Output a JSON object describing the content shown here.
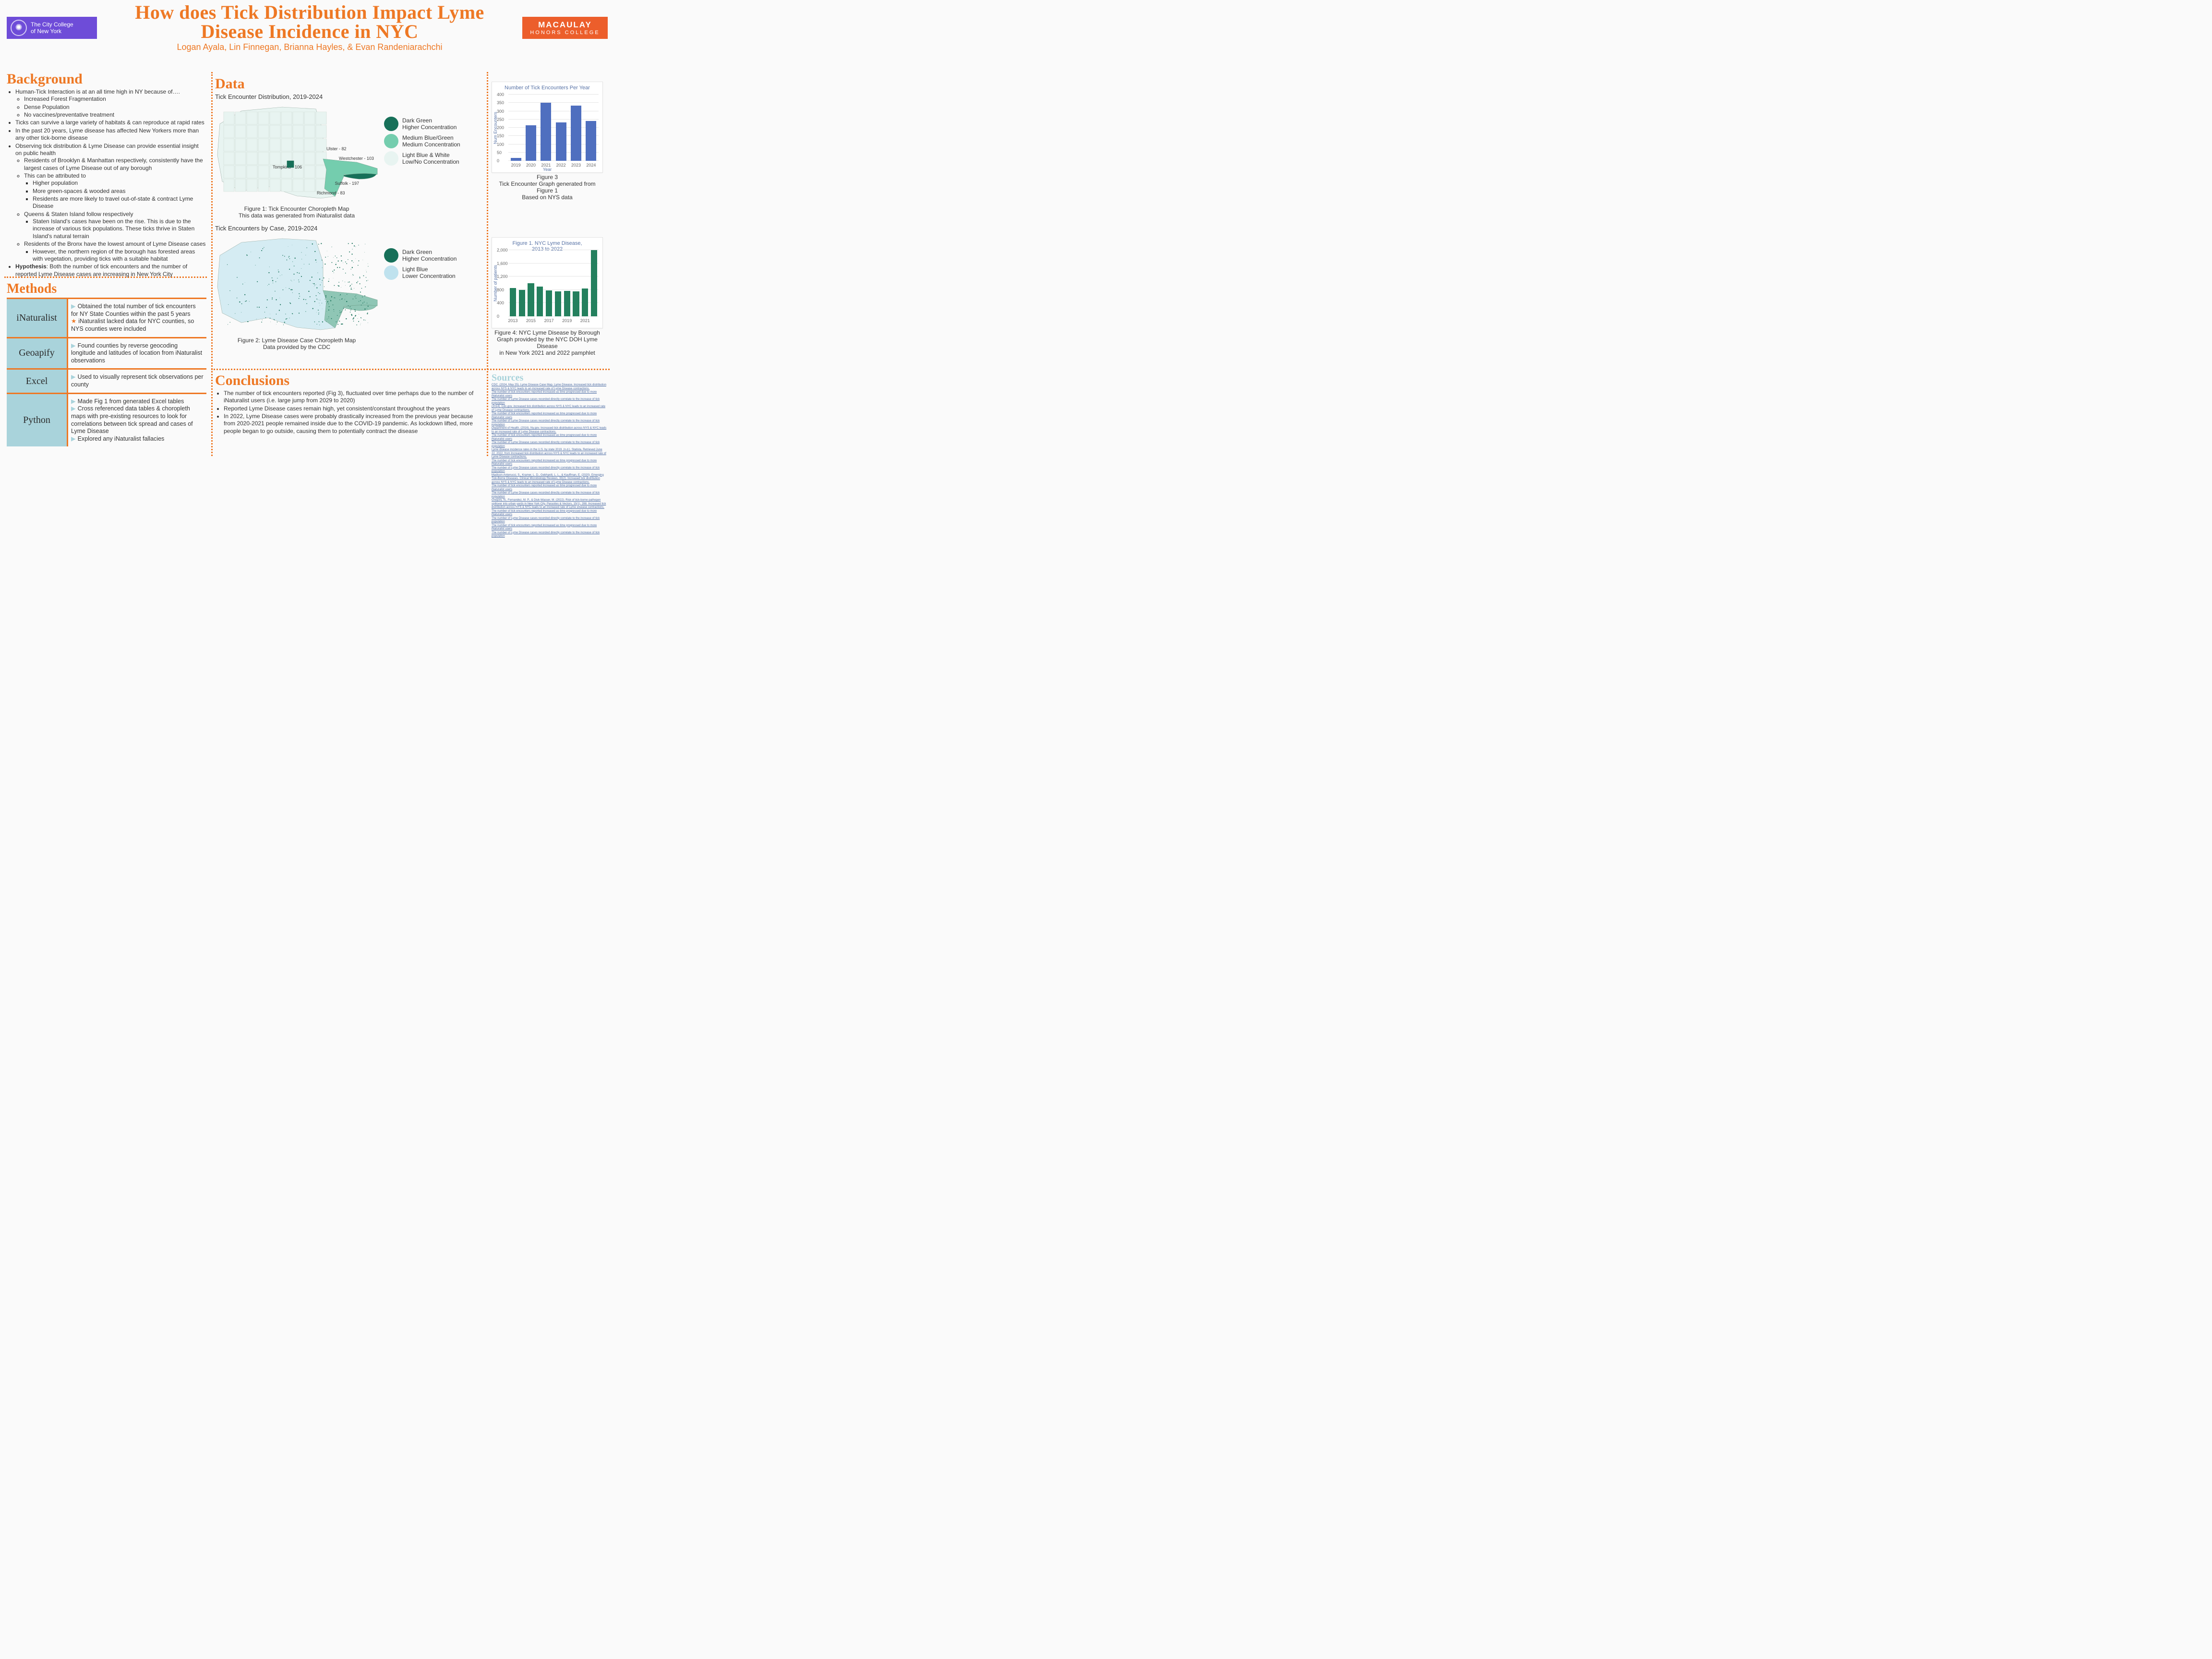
{
  "title": "How does Tick Distribution Impact Lyme Disease Incidence in NYC",
  "authors": "Logan Ayala, Lin Finnegan, Brianna Hayles, & Evan Randeniarachchi",
  "logos": {
    "ccny": "The City College\nof New York",
    "macaulay_line1": "MACAULAY",
    "macaulay_line2": "HONORS COLLEGE"
  },
  "colors": {
    "accent": "#ee7824",
    "tool_bg": "#a9d3db",
    "map_high": "#177059",
    "map_med": "#74cdae",
    "map_low": "#e8f4f1",
    "bar_blue": "#4f6fbf",
    "bar_green": "#24805e"
  },
  "sections": {
    "background": "Background",
    "methods": "Methods",
    "data": "Data",
    "conclusions": "Conclusions",
    "sources": "Sources"
  },
  "background_bullets": [
    {
      "t": "Human-Tick Interaction is at an all time high in NY because of….",
      "c": [
        {
          "t": "Increased Forest Fragmentation"
        },
        {
          "t": "Dense Population"
        },
        {
          "t": "No vaccines/preventative treatment"
        }
      ]
    },
    {
      "t": "Ticks can survive a large variety of habitats & can reproduce at rapid rates"
    },
    {
      "t": "In the past 20 years, Lyme disease has affected New Yorkers more than any other tick-borne disease"
    },
    {
      "t": "Observing tick distribution & Lyme Disease can provide essential insight on public health",
      "c": [
        {
          "t": "Residents of Brooklyn & Manhattan respectively, consistently have the largest cases of Lyme Disease out of any borough"
        },
        {
          "t": "This can be attributed to",
          "c": [
            {
              "t": "Higher population"
            },
            {
              "t": "More green-spaces & wooded areas"
            },
            {
              "t": "Residents are more likely to travel out-of-state & contract Lyme Disease"
            }
          ]
        },
        {
          "t": "Queens & Staten Island follow respectively",
          "c": [
            {
              "t": "Staten Island's cases have been on the rise. This is due to the increase of various tick populations. These ticks thrive in Staten Island's natural terrain"
            }
          ]
        },
        {
          "t": "Residents of the Bronx have the lowest amount of Lyme Disease cases",
          "c": [
            {
              "t": "However, the northern region of the borough has forested areas with vegetation, providing ticks with a suitable habitat"
            }
          ]
        }
      ]
    },
    {
      "t": "<b>Hypothesis</b>: Both the number of tick encounters and the number of reported Lyme Disease cases are increasing in New York City"
    }
  ],
  "methods": [
    {
      "tool": "iNaturalist",
      "lines": [
        {
          "icon": "arrow",
          "t": "Obtained the total number of tick encounters for NY State Counties within the past 5 years"
        },
        {
          "icon": "star",
          "t": "iNaturalist lacked data for NYC counties, so NYS counties were included"
        }
      ]
    },
    {
      "tool": "Geoapify",
      "lines": [
        {
          "icon": "arrow",
          "t": "Found counties by reverse geocoding longitude and latitudes of location from iNaturalist observations"
        }
      ]
    },
    {
      "tool": "Excel",
      "lines": [
        {
          "icon": "arrow",
          "t": "Used to visually represent tick observations per county"
        }
      ]
    },
    {
      "tool": "Python",
      "lines": [
        {
          "icon": "arrow",
          "t": "Made Fig 1 from generated Excel tables"
        },
        {
          "icon": "arrow",
          "t": "Cross referenced data tables & choropleth maps with pre-existing resources to look for correlations between tick spread and cases of Lyme Disease"
        },
        {
          "icon": "arrow",
          "t": "Explored any iNaturalist fallacies"
        }
      ]
    }
  ],
  "data": {
    "map1_title": "Tick Encounter Distribution, 2019-2024",
    "map1_caption": "Figure 1: Tick Encounter Choropleth Map\nThis data was generated from iNaturalist data",
    "map2_title": "Tick Encounters by Case, 2019-2024",
    "map2_caption": "Figure 2: Lyme Disease Case Choropleth Map\nData provided by the CDC",
    "legend1": [
      {
        "label": "Dark Green\nHigher Concentration",
        "color": "#177059"
      },
      {
        "label": "Medium Blue/Green\nMedium Concentration",
        "color": "#74cdae"
      },
      {
        "label": "Light Blue & White\nLow/No Concentration",
        "color": "#e8f4f1"
      }
    ],
    "legend2": [
      {
        "label": "Dark Green\nHigher Concentration",
        "color": "#177059"
      },
      {
        "label": "Light Blue\nLower Concentration",
        "color": "#bfe2ee"
      }
    ],
    "map1_labels": [
      {
        "name": "Ulster - 82"
      },
      {
        "name": "Westchester - 103"
      },
      {
        "name": "Tompkins - 106"
      },
      {
        "name": "Suffolk - 197"
      },
      {
        "name": "Richmond - 83"
      }
    ],
    "fig3": {
      "title": "Number of Tick Encounters Per Year",
      "xlabel": "Year",
      "ylabel": "Num Encounters",
      "caption": "Figure 3\nTick Encounter Graph generated from Figure 1\nBased on NYS data",
      "ylim": [
        0,
        400
      ],
      "ytick_step": 50,
      "categories": [
        "2019",
        "2020",
        "2021",
        "2022",
        "2023",
        "2024"
      ],
      "values": [
        18,
        214,
        352,
        232,
        332,
        240
      ],
      "bar_color": "#4f6fbf"
    },
    "fig4": {
      "title": "Figure 1. NYC Lyme Disease,\n2013 to 2022",
      "xlabel": "",
      "ylabel": "Number of patients",
      "caption": "Figure 4: NYC Lyme Disease by Borough\nGraph provided by the NYC DOH Lyme Disease\nin New York 2021 and 2022 pamphlet",
      "ylim": [
        0,
        2000
      ],
      "ytick_step": 400,
      "categories": [
        "2013",
        "2015",
        "2017",
        "2019",
        "2021"
      ],
      "values_full": [
        850,
        800,
        1000,
        900,
        780,
        750,
        770,
        750,
        840,
        2000
      ],
      "xvals_full": [
        "2013",
        "2014",
        "2015",
        "2016",
        "2017",
        "2018",
        "2019",
        "2020",
        "2021",
        "2022"
      ],
      "bar_color": "#24805e"
    }
  },
  "conclusions": [
    "The number of tick encounters reported (Fig 3), fluctuated over time perhaps due to the number of iNaturalist users (i.e. large jump from 2029 to 2020)",
    "Reported Lyme Disease cases remain high, yet consistent/constant throughout the years",
    "In 2022, Lyme Disease cases were probably drastically increased from the previous year because from 2020-2021 people remained inside due to the COVID-19 pandemic. As lockdown lifted, more people began to go outside, causing them to potentially contract the disease"
  ],
  "sources": [
    "CDC. (2024, May 25). Lyme Disease Case Map. Lyme Disease. Increased tick distribution across NYS & NYC leads to an increased rate of Lyme Disease contractions.",
    "The number of tick encounters reported increased as time progressed due to more iNaturalist users",
    "The number of Lyme Disease cases recorded directly correlate to the increase of tick population",
    "(2014). Cdc.gov. increased tick distribution across NYS & NYC leads to an increased rate of Lyme Disease contractions.",
    "The number of tick encounters reported increased as time progressed due to more iNaturalist users",
    "The number of Lyme Disease cases recorded directly correlate to the increase of tick population",
    "Department of Health. (2016). Ny.gov. Increased tick distribution across NYS & NYC leads to an increased rate of Lyme Disease contractions.",
    "The number of tick encounters reported increased as time progressed due to more iNaturalist users",
    "The number of Lyme Disease cases recorded directly correlate to the increase of tick population",
    "Lyme disease incidence rates in the U.S. by state 2019. (n.d.). Statista. Retrieved June 22, 2022, from Increased tick distribution across NYS & NYC leads to an increased rate of Lyme Disease contractions.",
    "The number of tick encounters reported increased as time progressed due to more iNaturalist users",
    "The number of Lyme Disease cases recorded directly correlate to the increase of tick population",
    "Madison-Antenucci, S., Kramer, L. D., Gebhardt, L. L., & Kauffman, E. (2020). Emerging Tick-Borne Diseases. Clinical Microbiology Reviews, 33(2). Increased tick distribution across NYS & NYC leads to an increased rate of Lyme Disease contractions.",
    "The number of tick encounters reported increased as time progressed due to more iNaturalist users",
    "The number of Lyme Disease cases recorded directly correlate to the increase of tick population",
    "Gregory, N., Fernandez, M. P., & Diuk-Wasser, M. (2022). Risk of tick-borne pathogen spillover into urban yards in New York City. Parasites & Vectors, 15(1), 288. Increased tick distribution across NYS & NYC leads to an increased rate of Lyme Disease contractions.",
    "The number of tick encounters reported increased as time progressed due to more iNaturalist users",
    "The number of Lyme Disease cases recorded directly correlate to the increase of tick population",
    "The number of tick encounters reported increased as time progressed due to more iNaturalist users",
    "The number of Lyme Disease cases recorded directly correlate to the increase of tick population"
  ]
}
